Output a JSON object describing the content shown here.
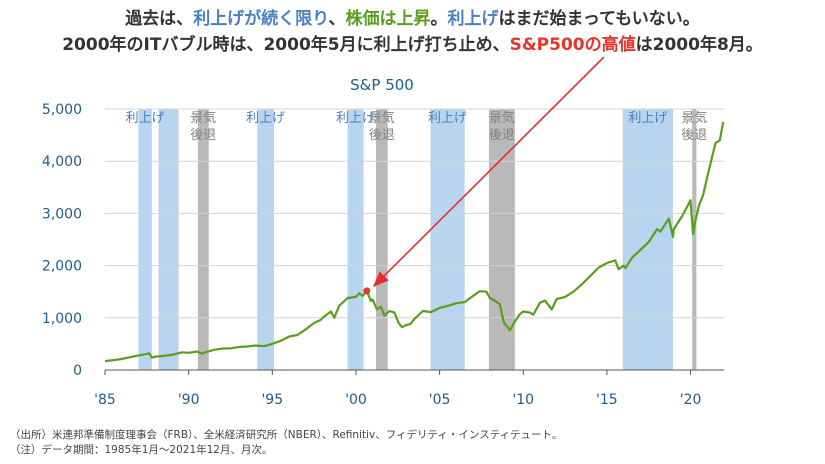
{
  "headline": {
    "line1": [
      {
        "text": "過去は、",
        "style": "plain"
      },
      {
        "text": "利上げが続く限り",
        "style": "blue"
      },
      {
        "text": "、",
        "style": "plain"
      },
      {
        "text": "株価は上昇",
        "style": "green"
      },
      {
        "text": "。",
        "style": "plain"
      },
      {
        "text": "利上げ",
        "style": "blue"
      },
      {
        "text": "はまだ始まってもいない。",
        "style": "plain"
      }
    ],
    "line2": [
      {
        "text": "2000年のITバブル時は、2000年5月に利上げ打ち止め、",
        "style": "plain"
      },
      {
        "text": "S&P500の高値",
        "style": "red"
      },
      {
        "text": "は2000年8月。",
        "style": "plain"
      }
    ]
  },
  "notes": {
    "source": "（出所）米連邦準備制度理事会（FRB）、全米経済研究所（NBER）、Refinitiv、フィデリティ・インスティテュート。",
    "note": "（注）データ期間：1985年1月～2021年12月、月次。"
  },
  "chart_data": {
    "type": "line",
    "title": "S&P 500",
    "xlabel": "",
    "ylabel": "",
    "xlim": [
      1985,
      2022
    ],
    "ylim": [
      0,
      5000
    ],
    "x_tick_values": [
      1985,
      1990,
      1995,
      2000,
      2005,
      2010,
      2015,
      2020
    ],
    "x_tick_labels": [
      "'85",
      "'90",
      "'95",
      "'00",
      "'05",
      "'10",
      "'15",
      "'20"
    ],
    "y_tick_values": [
      0,
      1000,
      2000,
      3000,
      4000,
      5000
    ],
    "y_tick_labels": [
      "0",
      "1,000",
      "2,000",
      "3,000",
      "4,000",
      "5,000"
    ],
    "grid": "horizontal",
    "series_color": "#5a9e1e",
    "series": [
      {
        "x": [
          1985,
          1985.5,
          1986,
          1986.5,
          1987,
          1987.4,
          1987.65,
          1987.8,
          1988,
          1988.5,
          1989,
          1989.6,
          1990,
          1990.5,
          1990.8,
          1991,
          1991.5,
          1992,
          1992.5,
          1993,
          1993.5,
          1994,
          1994.5,
          1995,
          1995.5,
          1996,
          1996.5,
          1997,
          1997.5,
          1997.9,
          1998,
          1998.5,
          1998.7,
          1999,
          1999.5,
          2000,
          2000.2,
          2000.4,
          2000.65,
          2000.9,
          2001,
          2001.25,
          2001.5,
          2001.7,
          2002,
          2002.3,
          2002.55,
          2002.75,
          2003,
          2003.25,
          2003.5,
          2004,
          2004.5,
          2005,
          2005.5,
          2006,
          2006.5,
          2007,
          2007.4,
          2007.8,
          2008,
          2008.3,
          2008.6,
          2008.85,
          2009,
          2009.2,
          2009.5,
          2009.8,
          2010,
          2010.4,
          2010.6,
          2011,
          2011.3,
          2011.7,
          2012,
          2012.5,
          2013,
          2013.5,
          2014,
          2014.5,
          2015,
          2015.5,
          2015.7,
          2016,
          2016.1,
          2016.5,
          2017,
          2017.5,
          2018,
          2018.2,
          2018.7,
          2018.95,
          2019,
          2019.5,
          2020,
          2020.15,
          2020.25,
          2020.5,
          2020.75,
          2021,
          2021.3,
          2021.5,
          2021.75,
          2021.95
        ],
        "values": [
          170,
          190,
          210,
          245,
          280,
          300,
          320,
          235,
          255,
          270,
          290,
          340,
          330,
          355,
          310,
          340,
          385,
          410,
          415,
          440,
          450,
          470,
          455,
          500,
          560,
          640,
          670,
          780,
          900,
          960,
          1000,
          1120,
          1000,
          1230,
          1380,
          1400,
          1470,
          1420,
          1517,
          1320,
          1350,
          1160,
          1210,
          1040,
          1130,
          1100,
          900,
          820,
          860,
          880,
          980,
          1130,
          1110,
          1190,
          1230,
          1280,
          1300,
          1420,
          1510,
          1500,
          1380,
          1330,
          1260,
          900,
          850,
          760,
          930,
          1070,
          1120,
          1100,
          1060,
          1290,
          1330,
          1160,
          1360,
          1400,
          1500,
          1640,
          1800,
          1960,
          2050,
          2100,
          1930,
          2000,
          1950,
          2150,
          2300,
          2450,
          2700,
          2650,
          2900,
          2550,
          2700,
          2950,
          3250,
          2600,
          2800,
          3150,
          3350,
          3700,
          4100,
          4350,
          4400,
          4750
        ]
      }
    ],
    "highlight_point": {
      "x": 2000.65,
      "y": 1517,
      "color": "#e8332a"
    },
    "bands": [
      {
        "start": 1987.0,
        "end": 1987.8,
        "kind": "hike",
        "label": "利上げ",
        "color": "#b8d4ee"
      },
      {
        "start": 1988.2,
        "end": 1989.4,
        "kind": "hike",
        "label": "",
        "color": "#b8d4ee"
      },
      {
        "start": 1990.55,
        "end": 1991.2,
        "kind": "recession",
        "label": "景気\n後退",
        "color": "#b9b9b9"
      },
      {
        "start": 1994.1,
        "end": 1995.1,
        "kind": "hike",
        "label": "利上げ",
        "color": "#b8d4ee"
      },
      {
        "start": 1999.5,
        "end": 2000.45,
        "kind": "hike",
        "label": "利上げ",
        "color": "#b8d4ee"
      },
      {
        "start": 2001.2,
        "end": 2001.9,
        "kind": "recession",
        "label": "景気\n後退",
        "color": "#b9b9b9"
      },
      {
        "start": 2004.45,
        "end": 2006.5,
        "kind": "hike",
        "label": "利上げ",
        "color": "#b8d4ee"
      },
      {
        "start": 2007.95,
        "end": 2009.5,
        "kind": "recession",
        "label": "景気\n後退",
        "color": "#b9b9b9"
      },
      {
        "start": 2015.95,
        "end": 2018.95,
        "kind": "hike",
        "label": "利上げ",
        "color": "#b8d4ee"
      },
      {
        "start": 2020.1,
        "end": 2020.35,
        "kind": "recession",
        "label": "景気\n後退",
        "color": "#b9b9b9"
      }
    ]
  }
}
